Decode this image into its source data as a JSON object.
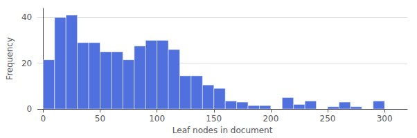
{
  "chart_data": {
    "type": "histogram",
    "xlabel": "Leaf nodes in document",
    "ylabel": "Frequency",
    "bins": [
      0,
      10,
      20,
      30,
      40,
      50,
      60,
      70,
      80,
      90,
      100,
      110,
      120,
      130,
      140,
      150,
      160,
      170,
      180,
      190,
      200,
      210,
      220,
      230,
      240,
      250,
      260,
      270,
      280,
      290,
      300,
      310,
      320
    ],
    "values": [
      21.5,
      40.0,
      41.0,
      29.0,
      29.0,
      25.0,
      25.0,
      21.5,
      27.5,
      30.0,
      30.0,
      26.0,
      14.5,
      14.5,
      10.5,
      9.0,
      3.5,
      3.0,
      1.5,
      1.5,
      0.0,
      5.0,
      2.0,
      3.5,
      0.0,
      1.0,
      3.0,
      1.0,
      0.0,
      3.5,
      0.0,
      0.0
    ],
    "xlim": [
      -5,
      320
    ],
    "ylim": [
      0,
      44
    ],
    "xticks": [
      0,
      50,
      100,
      150,
      200,
      250,
      300
    ],
    "yticks": [
      0,
      20,
      40
    ],
    "grid": true
  }
}
